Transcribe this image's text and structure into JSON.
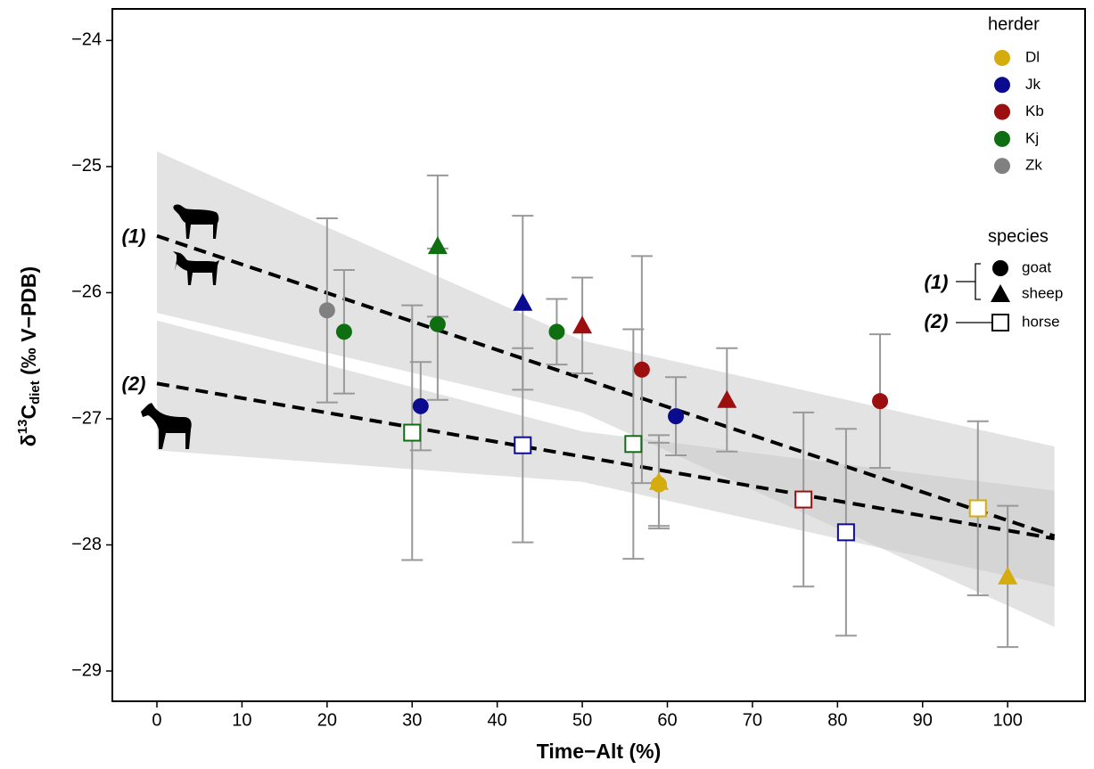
{
  "chart_data": {
    "type": "scatter",
    "x_label": "Time−Alt (%)",
    "y_label": {
      "prefix": "δ",
      "sup": "13",
      "main": "C",
      "sub": "diet",
      "suffix": " (‰ V−PDB)"
    },
    "xlim": [
      -5.24,
      109.1
    ],
    "ylim": [
      -29.24,
      -23.75
    ],
    "xticks": [
      0,
      10,
      20,
      30,
      40,
      50,
      60,
      70,
      80,
      90,
      100
    ],
    "yticks": [
      {
        "value": -29,
        "label": "−29"
      },
      {
        "value": -28,
        "label": "−28"
      },
      {
        "value": -27,
        "label": "−27"
      },
      {
        "value": -26,
        "label": "−26"
      },
      {
        "value": -25,
        "label": "−25"
      },
      {
        "value": -24,
        "label": "−24"
      }
    ],
    "herder_legend": {
      "title": "herder",
      "items": [
        {
          "name": "Dl",
          "color": "#d4ac0d"
        },
        {
          "name": "Jk",
          "color": "#0b0b8f"
        },
        {
          "name": "Kb",
          "color": "#9c0f0f"
        },
        {
          "name": "Kj",
          "color": "#0f6e12"
        },
        {
          "name": "Zk",
          "color": "#808080"
        }
      ]
    },
    "species_legend": {
      "title": "species",
      "items": [
        {
          "name": "goat",
          "shape": "circle",
          "group": 0
        },
        {
          "name": "sheep",
          "shape": "triangle",
          "group": 0
        },
        {
          "name": "horse",
          "shape": "square",
          "group": 1
        }
      ]
    },
    "fits": [
      {
        "label": "(1)",
        "x": [
          0,
          50,
          105.5
        ],
        "y": [
          -25.55,
          -26.68,
          -27.93
        ],
        "upper": [
          -24.88,
          -26.38,
          -27.22
        ],
        "lower": [
          -26.16,
          -26.95,
          -28.65
        ]
      },
      {
        "label": "(2)",
        "x": [
          0,
          50,
          105.5
        ],
        "y": [
          -26.72,
          -27.3,
          -27.95
        ],
        "upper": [
          -26.22,
          -27.1,
          -27.57
        ],
        "lower": [
          -27.25,
          -27.5,
          -28.33
        ]
      }
    ],
    "points": {
      "x": [
        20,
        22,
        31,
        33,
        33,
        30,
        43,
        43,
        47,
        50,
        57,
        56,
        59,
        59,
        61,
        67,
        76,
        81,
        85,
        96.5,
        100
      ],
      "y": [
        -26.14,
        -26.31,
        -26.9,
        -25.63,
        -26.25,
        -27.11,
        -26.08,
        -27.21,
        -26.31,
        -26.26,
        -26.61,
        -27.2,
        -27.52,
        -27.5,
        -26.98,
        -26.85,
        -27.64,
        -27.9,
        -26.86,
        -27.71,
        -28.25
      ],
      "error": [
        0.73,
        0.49,
        0.35,
        0.56,
        0.6,
        1.01,
        0.69,
        0.77,
        0.26,
        0.38,
        0.9,
        0.91,
        0.33,
        0.37,
        0.31,
        0.41,
        0.69,
        0.82,
        0.53,
        0.69,
        0.56
      ],
      "herder": [
        "Zk",
        "Kj",
        "Jk",
        "Kj",
        "Kj",
        "Kj",
        "Jk",
        "Jk",
        "Kj",
        "Kb",
        "Kb",
        "Kj",
        "Dl",
        "Dl",
        "Jk",
        "Kb",
        "Kb",
        "Jk",
        "Kb",
        "Dl",
        "Dl"
      ],
      "species": [
        "goat",
        "goat",
        "goat",
        "sheep",
        "goat",
        "horse",
        "sheep",
        "horse",
        "goat",
        "sheep",
        "goat",
        "horse",
        "goat",
        "sheep",
        "goat",
        "sheep",
        "horse",
        "horse",
        "goat",
        "horse",
        "sheep"
      ]
    }
  }
}
